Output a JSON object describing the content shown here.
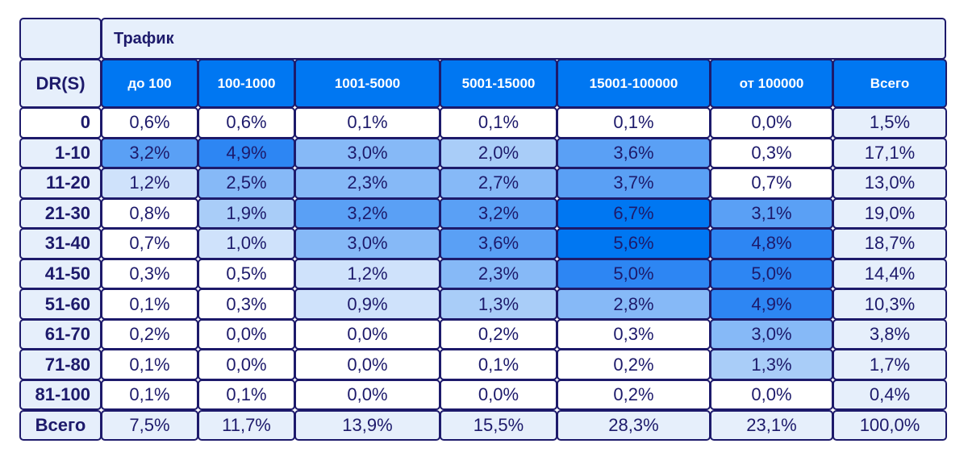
{
  "chart_data": {
    "type": "heatmap",
    "title": "Трафик",
    "row_header": "DR(S)",
    "columns": [
      "до 100",
      "100-1000",
      "1001-5000",
      "5001-15000",
      "15001-100000",
      "от 100000",
      "Всего"
    ],
    "rows": [
      {
        "label": "0",
        "values": [
          "0,6%",
          "0,6%",
          "0,1%",
          "0,1%",
          "0,1%",
          "0,0%",
          "1,5%"
        ]
      },
      {
        "label": "1-10",
        "values": [
          "3,2%",
          "4,9%",
          "3,0%",
          "2,0%",
          "3,6%",
          "0,3%",
          "17,1%"
        ]
      },
      {
        "label": "11-20",
        "values": [
          "1,2%",
          "2,5%",
          "2,3%",
          "2,7%",
          "3,7%",
          "0,7%",
          "13,0%"
        ]
      },
      {
        "label": "21-30",
        "values": [
          "0,8%",
          "1,9%",
          "3,2%",
          "3,2%",
          "6,7%",
          "3,1%",
          "19,0%"
        ]
      },
      {
        "label": "31-40",
        "values": [
          "0,7%",
          "1,0%",
          "3,0%",
          "3,6%",
          "5,6%",
          "4,8%",
          "18,7%"
        ]
      },
      {
        "label": "41-50",
        "values": [
          "0,3%",
          "0,5%",
          "1,2%",
          "2,3%",
          "5,0%",
          "5,0%",
          "14,4%"
        ]
      },
      {
        "label": "51-60",
        "values": [
          "0,1%",
          "0,3%",
          "0,9%",
          "1,3%",
          "2,8%",
          "4,9%",
          "10,3%"
        ]
      },
      {
        "label": "61-70",
        "values": [
          "0,2%",
          "0,0%",
          "0,0%",
          "0,2%",
          "0,3%",
          "3,0%",
          "3,8%"
        ]
      },
      {
        "label": "71-80",
        "values": [
          "0,1%",
          "0,0%",
          "0,0%",
          "0,1%",
          "0,2%",
          "1,3%",
          "1,7%"
        ]
      },
      {
        "label": "81-100",
        "values": [
          "0,1%",
          "0,1%",
          "0,0%",
          "0,0%",
          "0,2%",
          "0,0%",
          "0,4%"
        ]
      },
      {
        "label": "Всего",
        "values": [
          "7,5%",
          "11,7%",
          "13,9%",
          "15,5%",
          "28,3%",
          "23,1%",
          "100,0%"
        ]
      }
    ],
    "colors": {
      "header": "#0077f2",
      "light": "#e6effb",
      "text": "#1d1a6b",
      "white": "#ffffff",
      "scale": [
        "#ffffff",
        "#cfe2fb",
        "#a9cdf8",
        "#86b9f7",
        "#5aa0f5",
        "#2d86f3",
        "#0077f2"
      ]
    }
  }
}
